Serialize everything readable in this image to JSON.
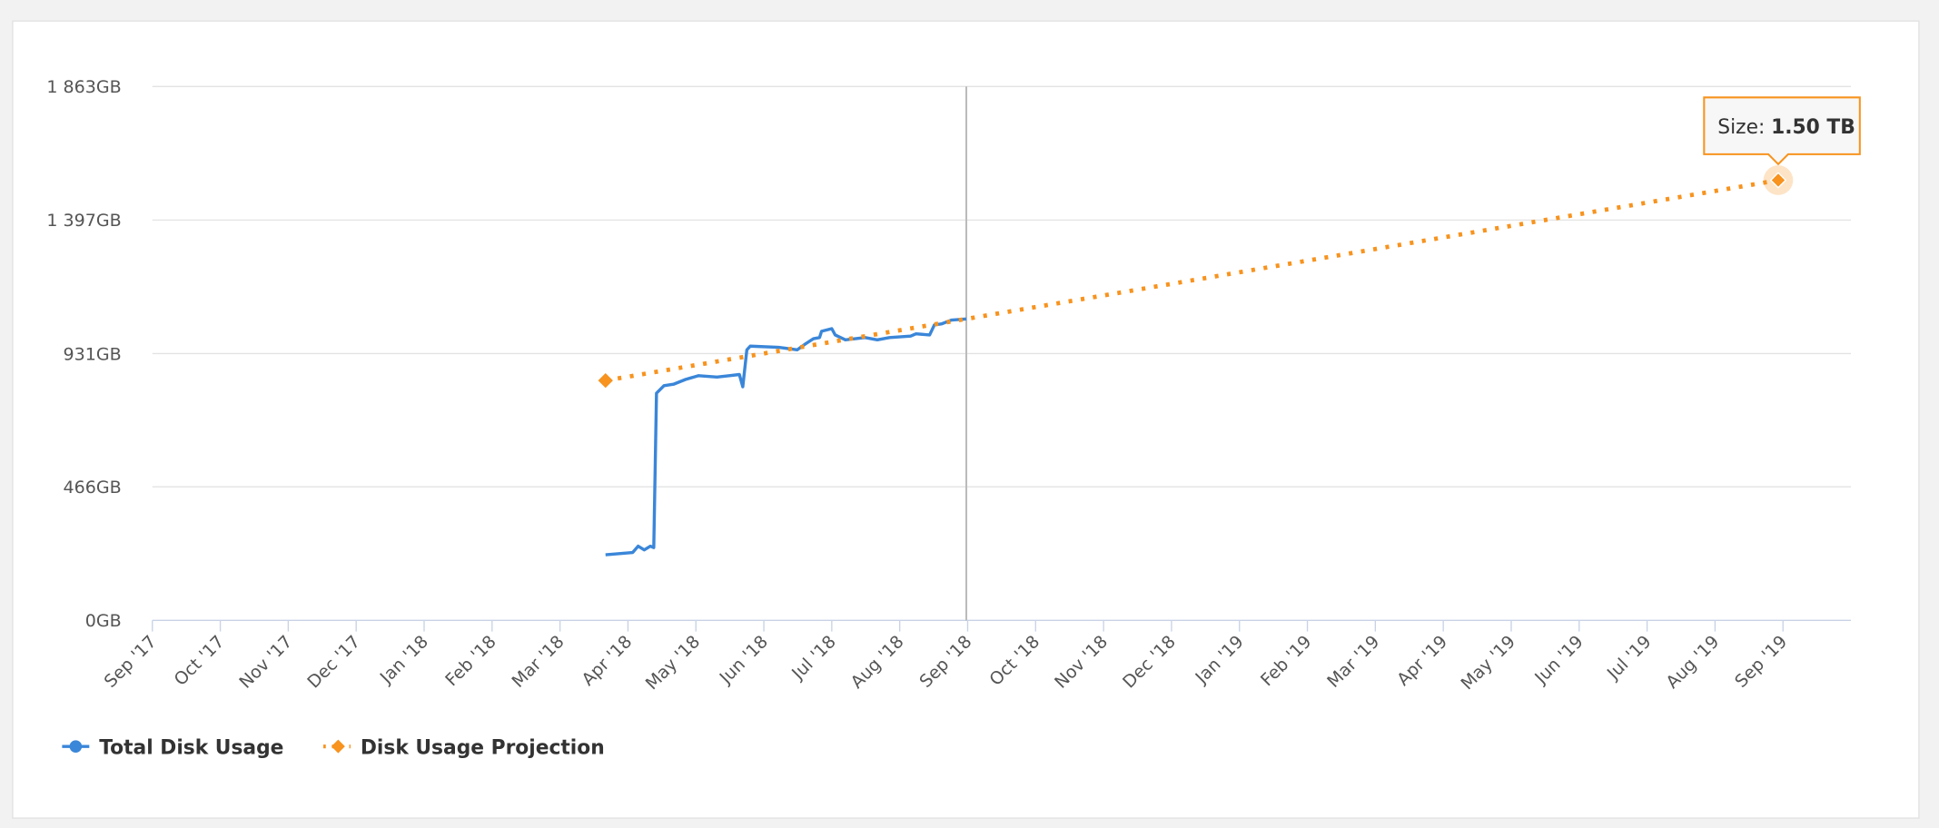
{
  "chart_data": {
    "type": "line",
    "xlim": [
      0,
      25
    ],
    "xticks": [
      {
        "value": 0,
        "label": "Sep '17"
      },
      {
        "value": 1,
        "label": "Oct '17"
      },
      {
        "value": 2,
        "label": "Nov '17"
      },
      {
        "value": 3,
        "label": "Dec '17"
      },
      {
        "value": 4,
        "label": "Jan '18"
      },
      {
        "value": 5,
        "label": "Feb '18"
      },
      {
        "value": 6,
        "label": "Mar '18"
      },
      {
        "value": 7,
        "label": "Apr '18"
      },
      {
        "value": 8,
        "label": "May '18"
      },
      {
        "value": 9,
        "label": "Jun '18"
      },
      {
        "value": 10,
        "label": "Jul '18"
      },
      {
        "value": 11,
        "label": "Aug '18"
      },
      {
        "value": 12,
        "label": "Sep '18"
      },
      {
        "value": 13,
        "label": "Oct '18"
      },
      {
        "value": 14,
        "label": "Nov '18"
      },
      {
        "value": 15,
        "label": "Dec '18"
      },
      {
        "value": 16,
        "label": "Jan '19"
      },
      {
        "value": 17,
        "label": "Feb '19"
      },
      {
        "value": 18,
        "label": "Mar '19"
      },
      {
        "value": 19,
        "label": "Apr '19"
      },
      {
        "value": 20,
        "label": "May '19"
      },
      {
        "value": 21,
        "label": "Jun '19"
      },
      {
        "value": 22,
        "label": "Jul '19"
      },
      {
        "value": 23,
        "label": "Aug '19"
      },
      {
        "value": 24,
        "label": "Sep '19"
      }
    ],
    "ylim": [
      0,
      1863
    ],
    "yticks": [
      {
        "value": 0,
        "label": "0GB"
      },
      {
        "value": 466,
        "label": "466GB"
      },
      {
        "value": 931,
        "label": "931GB"
      },
      {
        "value": 1397,
        "label": "1 397GB"
      },
      {
        "value": 1863,
        "label": "1 863GB"
      }
    ],
    "grid": true,
    "legend": "bottom-left",
    "series": [
      {
        "name": "Total Disk Usage",
        "color": "#3a86d9",
        "style": "solid",
        "marker": "circle",
        "x": [
          6.67,
          7.07,
          7.15,
          7.24,
          7.33,
          7.38,
          7.42,
          7.53,
          7.67,
          7.85,
          8.04,
          8.31,
          8.49,
          8.64,
          8.69,
          8.75,
          8.8,
          9.22,
          9.49,
          9.62,
          9.73,
          9.82,
          9.85,
          10.0,
          10.05,
          10.2,
          10.49,
          10.67,
          10.85,
          11.16,
          11.24,
          11.44,
          11.51,
          11.62,
          11.76,
          11.98
        ],
        "values": [
          229,
          237,
          259,
          246,
          259,
          254,
          793,
          819,
          824,
          841,
          854,
          849,
          854,
          858,
          815,
          944,
          957,
          953,
          944,
          966,
          983,
          987,
          1009,
          1018,
          996,
          979,
          987,
          979,
          987,
          992,
          1000,
          996,
          1031,
          1035,
          1048,
          1052
        ]
      },
      {
        "name": "Disk Usage Projection",
        "color": "#f7931e",
        "style": "dotted",
        "marker": "diamond",
        "x": [
          6.67,
          23.93
        ],
        "values": [
          837,
          1536
        ]
      }
    ],
    "tooltip": {
      "label": "Size:",
      "value": "1.50 TB"
    }
  }
}
